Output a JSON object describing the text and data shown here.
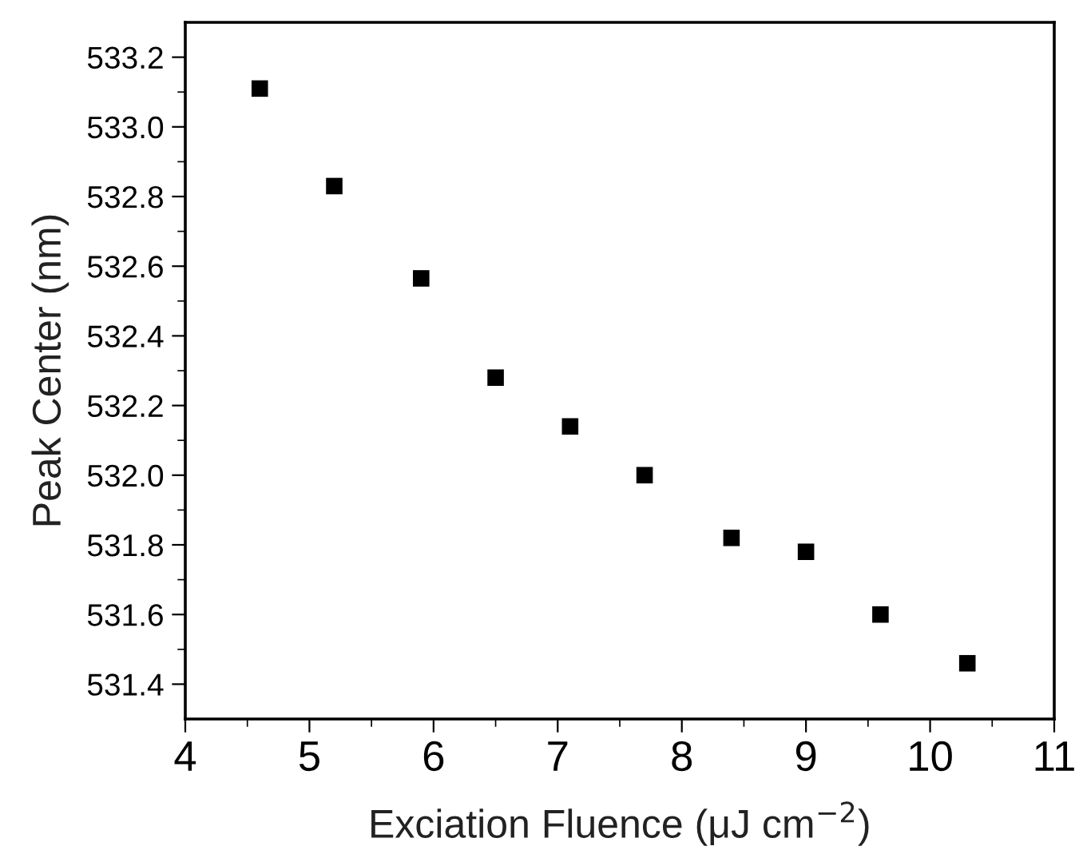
{
  "chart_data": {
    "type": "scatter",
    "xlabel": "Exciation Fluence (μJ cm$^{−2}$)",
    "ylabel": "Peak Center (nm)",
    "x": [
      4.6,
      5.2,
      5.9,
      6.5,
      7.1,
      7.7,
      8.4,
      9.0,
      9.6,
      10.3
    ],
    "series": [
      {
        "color": "#000000",
        "values": [
          533.11,
          532.83,
          532.565,
          532.28,
          532.14,
          532.0,
          531.82,
          531.78,
          531.6,
          531.46
        ]
      }
    ],
    "xlim": [
      4,
      11
    ],
    "xticks": [
      4,
      5,
      6,
      7,
      8,
      9,
      10,
      11
    ],
    "ylim": [
      531.3,
      533.3
    ],
    "yticks": [
      {
        "value": 531.4,
        "label": "531.4"
      },
      {
        "value": 531.6,
        "label": "531.6"
      },
      {
        "value": 531.8,
        "label": "531.8"
      },
      {
        "value": 532.0,
        "label": "532.0"
      },
      {
        "value": 532.2,
        "label": "532.2"
      },
      {
        "value": 532.4,
        "label": "532.4"
      },
      {
        "value": 532.6,
        "label": "532.6"
      },
      {
        "value": 532.8,
        "label": "532.8"
      },
      {
        "value": 533.0,
        "label": "533.0"
      },
      {
        "value": 533.2,
        "label": "533.2"
      }
    ],
    "marker": "square",
    "grid": false,
    "legend": false
  }
}
